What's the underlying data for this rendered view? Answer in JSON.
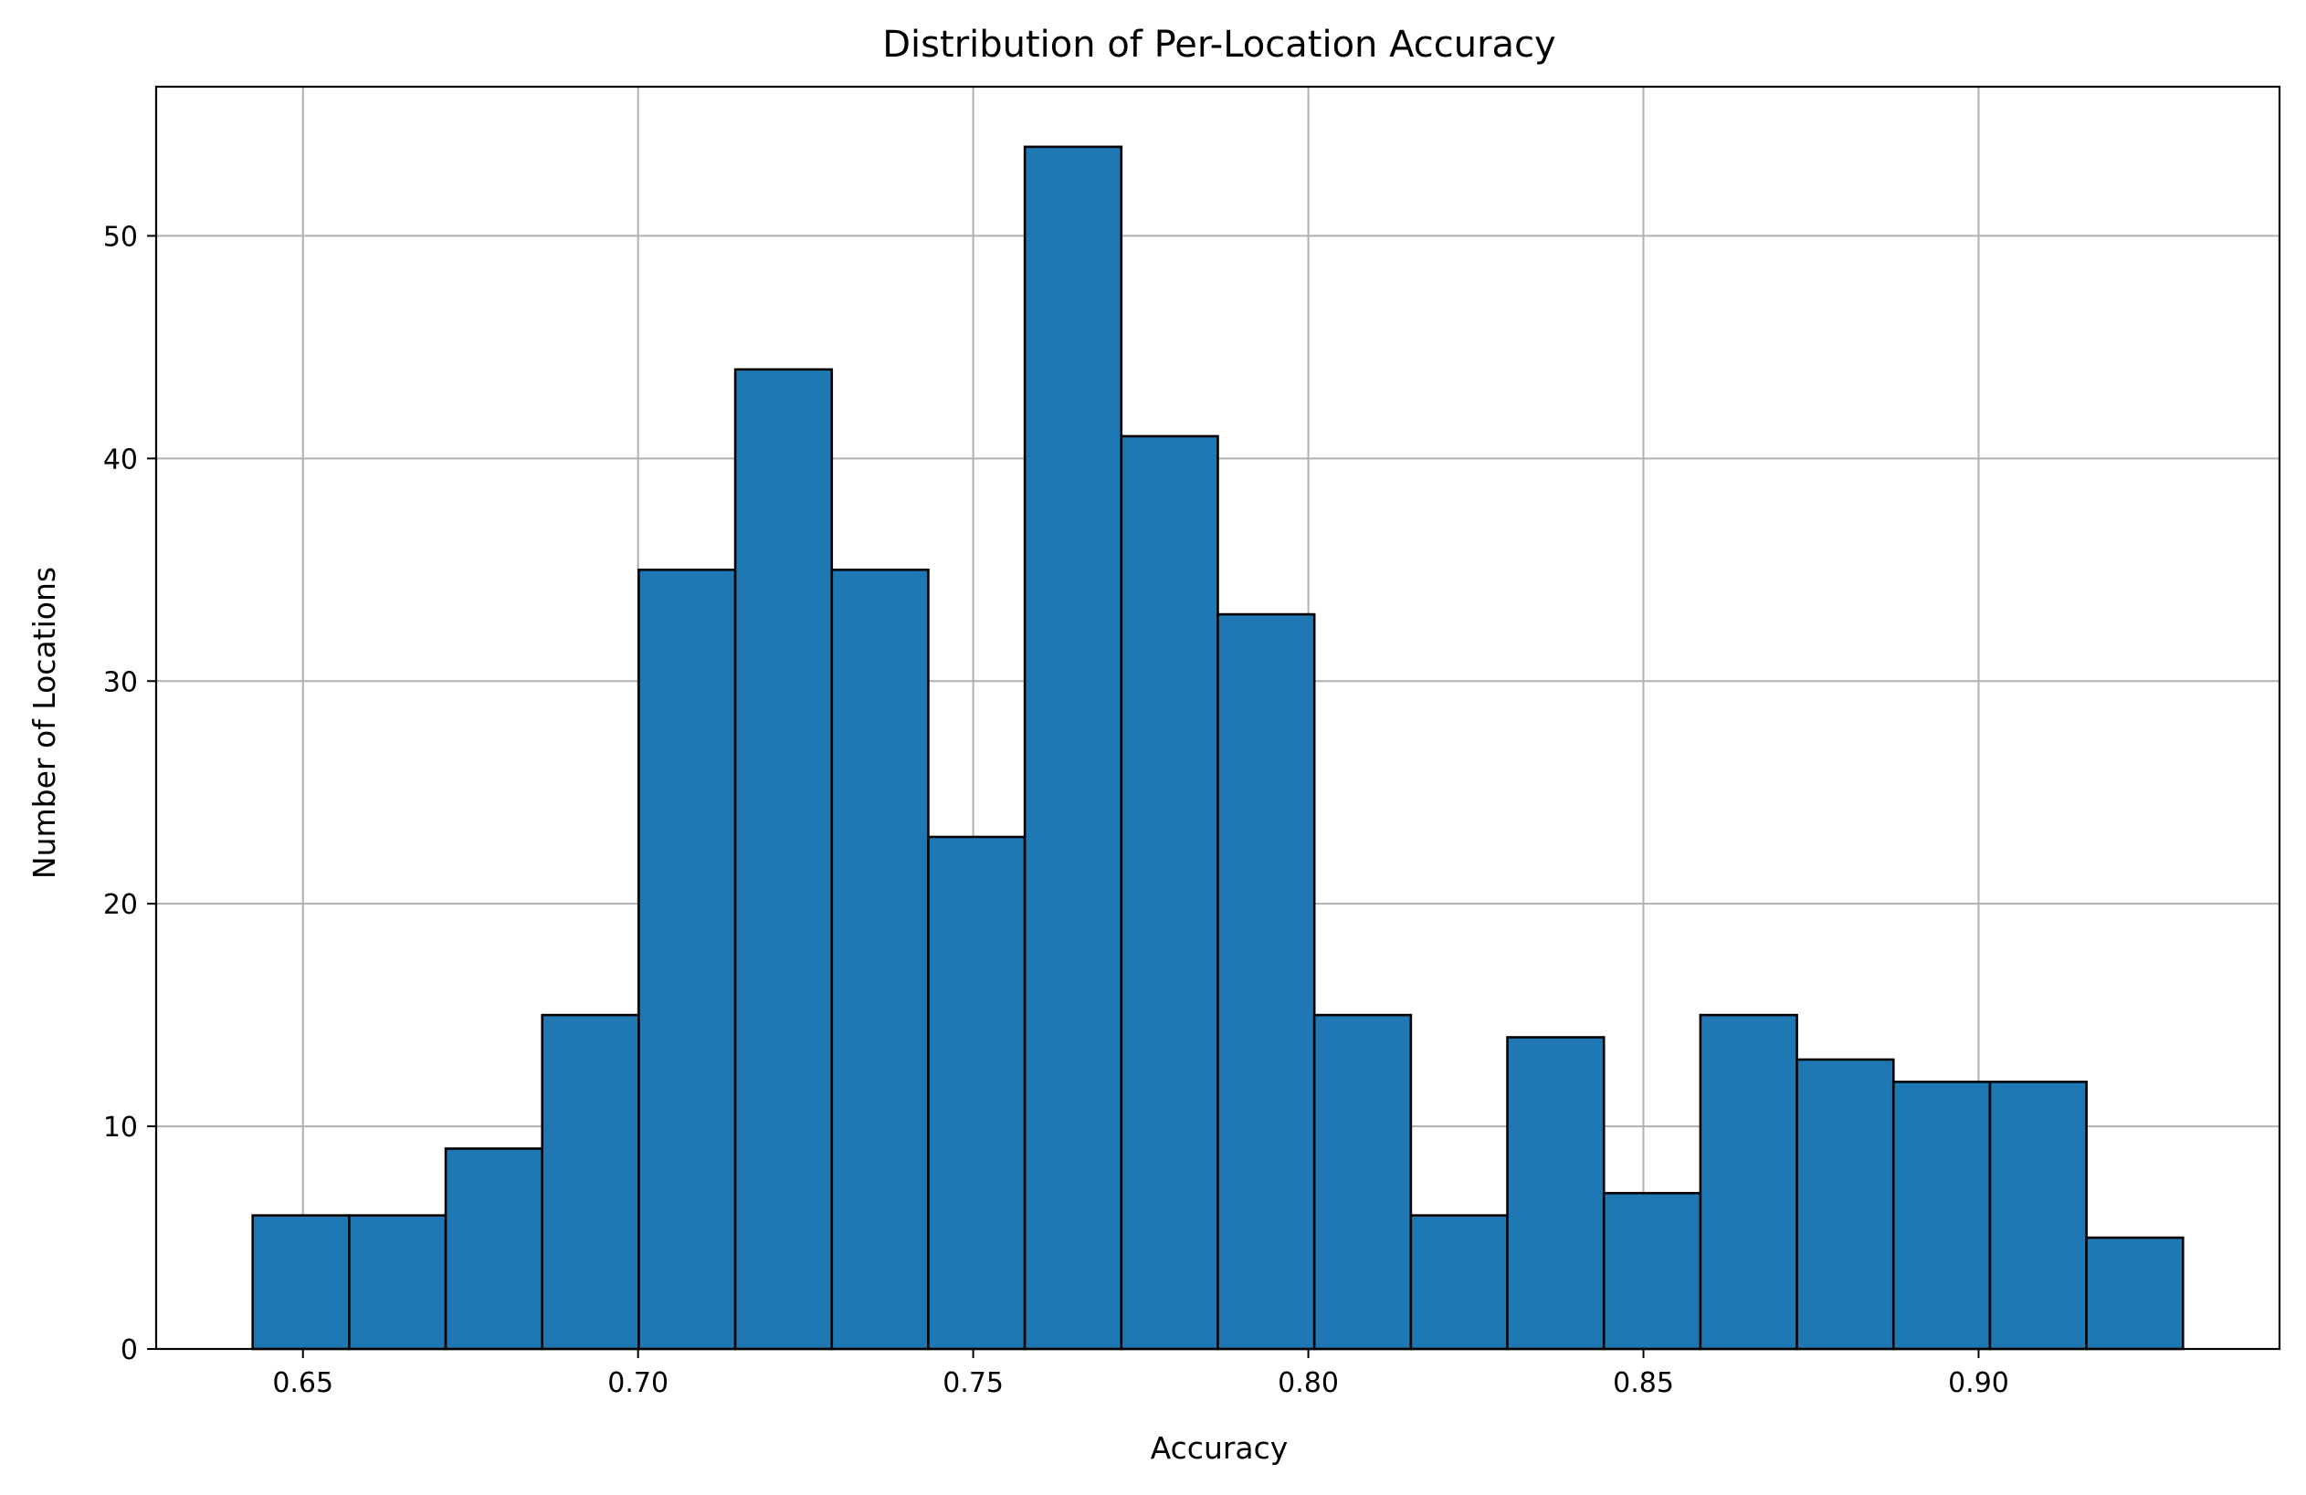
{
  "chart_data": {
    "type": "bar",
    "title": "Distribution of Per-Location Accuracy",
    "xlabel": "Accuracy",
    "ylabel": "Number of Locations",
    "bins": [
      {
        "start": 0.6425,
        "end": 0.6569,
        "count": 6
      },
      {
        "start": 0.6569,
        "end": 0.6713,
        "count": 6
      },
      {
        "start": 0.6713,
        "end": 0.6857,
        "count": 9
      },
      {
        "start": 0.6857,
        "end": 0.7001,
        "count": 15
      },
      {
        "start": 0.7001,
        "end": 0.7145,
        "count": 35
      },
      {
        "start": 0.7145,
        "end": 0.7289,
        "count": 44
      },
      {
        "start": 0.7289,
        "end": 0.7433,
        "count": 35
      },
      {
        "start": 0.7433,
        "end": 0.7577,
        "count": 23
      },
      {
        "start": 0.7577,
        "end": 0.7721,
        "count": 54
      },
      {
        "start": 0.7721,
        "end": 0.7865,
        "count": 41
      },
      {
        "start": 0.7865,
        "end": 0.8009,
        "count": 33
      },
      {
        "start": 0.8009,
        "end": 0.8153,
        "count": 15
      },
      {
        "start": 0.8153,
        "end": 0.8297,
        "count": 6
      },
      {
        "start": 0.8297,
        "end": 0.8441,
        "count": 14
      },
      {
        "start": 0.8441,
        "end": 0.8585,
        "count": 7
      },
      {
        "start": 0.8585,
        "end": 0.8729,
        "count": 15
      },
      {
        "start": 0.8729,
        "end": 0.8873,
        "count": 13
      },
      {
        "start": 0.8873,
        "end": 0.9017,
        "count": 12
      },
      {
        "start": 0.9017,
        "end": 0.9161,
        "count": 12
      },
      {
        "start": 0.9161,
        "end": 0.9305,
        "count": 5
      }
    ],
    "xlim": [
      0.6281,
      0.9449
    ],
    "ylim": [
      0,
      56.7
    ],
    "xticks": [
      0.65,
      0.7,
      0.75,
      0.8,
      0.85,
      0.9
    ],
    "xtick_labels": [
      "0.65",
      "0.70",
      "0.75",
      "0.80",
      "0.85",
      "0.90"
    ],
    "yticks": [
      0,
      10,
      20,
      30,
      40,
      50
    ],
    "ytick_labels": [
      "0",
      "10",
      "20",
      "30",
      "40",
      "50"
    ],
    "grid": true,
    "bar_color": "#1f77b4",
    "edge_color": "#000000",
    "grid_color": "#b0b0b0"
  }
}
